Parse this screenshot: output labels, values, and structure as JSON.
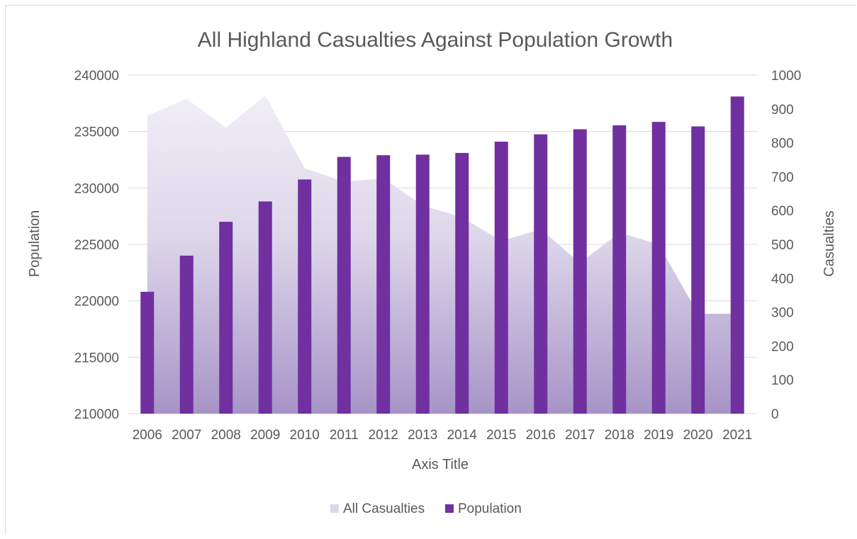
{
  "chart_data": {
    "type": "bar",
    "title": "All Highland Casualties Against Population Growth",
    "xlabel": "Axis Title",
    "ylabel": "Population",
    "y2label": "Casualties",
    "categories": [
      "2006",
      "2007",
      "2008",
      "2009",
      "2010",
      "2011",
      "2012",
      "2013",
      "2014",
      "2015",
      "2016",
      "2017",
      "2018",
      "2019",
      "2020",
      "2021"
    ],
    "ylim": [
      210000,
      240000
    ],
    "y2lim": [
      0,
      1000
    ],
    "yticks": [
      "210000",
      "215000",
      "220000",
      "225000",
      "230000",
      "235000",
      "240000"
    ],
    "y2ticks": [
      "0",
      "100",
      "200",
      "300",
      "400",
      "500",
      "600",
      "700",
      "800",
      "900",
      "1000"
    ],
    "series": [
      {
        "name": "All Casualties",
        "kind": "area",
        "axis": "right",
        "values": [
          880,
          930,
          845,
          940,
          725,
          685,
          695,
          615,
          580,
          510,
          545,
          445,
          535,
          500,
          295,
          295
        ]
      },
      {
        "name": "Population",
        "kind": "bar",
        "axis": "left",
        "values": [
          220800,
          224000,
          227000,
          228800,
          230750,
          232750,
          232900,
          232950,
          233100,
          234100,
          234750,
          235200,
          235550,
          235850,
          235450,
          238100
        ]
      }
    ],
    "grid": true,
    "legend_position": "bottom",
    "colors": {
      "bar": "#7030a0",
      "area_top": "#f1eef6",
      "area_bottom": "#a794c7",
      "grid": "#d9d9d9"
    }
  }
}
